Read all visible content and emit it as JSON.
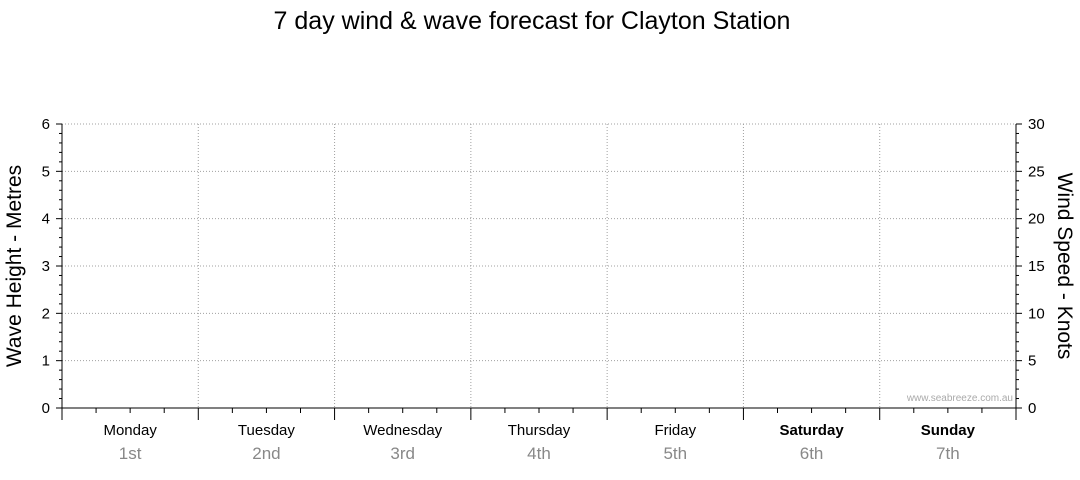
{
  "chart_data": {
    "type": "line",
    "title": "7 day wind & wave forecast for Clayton Station",
    "y_left_label": "Wave Height - Metres",
    "y_right_label": "Wind Speed - Knots",
    "y_left_range": [
      0,
      6
    ],
    "y_right_range": [
      0,
      30
    ],
    "y_left_ticks": [
      "0",
      "1",
      "2",
      "3",
      "4",
      "5",
      "6"
    ],
    "y_right_ticks": [
      "0",
      "5",
      "10",
      "15",
      "20",
      "25",
      "30"
    ],
    "grid": true,
    "days": [
      {
        "day": "Monday",
        "date": "1st",
        "weekend": false
      },
      {
        "day": "Tuesday",
        "date": "2nd",
        "weekend": false
      },
      {
        "day": "Wednesday",
        "date": "3rd",
        "weekend": false
      },
      {
        "day": "Thursday",
        "date": "4th",
        "weekend": false
      },
      {
        "day": "Friday",
        "date": "5th",
        "weekend": false
      },
      {
        "day": "Saturday",
        "date": "6th",
        "weekend": true
      },
      {
        "day": "Sunday",
        "date": "7th",
        "weekend": true
      }
    ],
    "series": [],
    "watermark": "www.seabreeze.com.au"
  },
  "colors": {
    "axis": "#000000",
    "grid": "#a0a0a0",
    "date_text": "#888888",
    "watermark": "#aaaaaa"
  }
}
